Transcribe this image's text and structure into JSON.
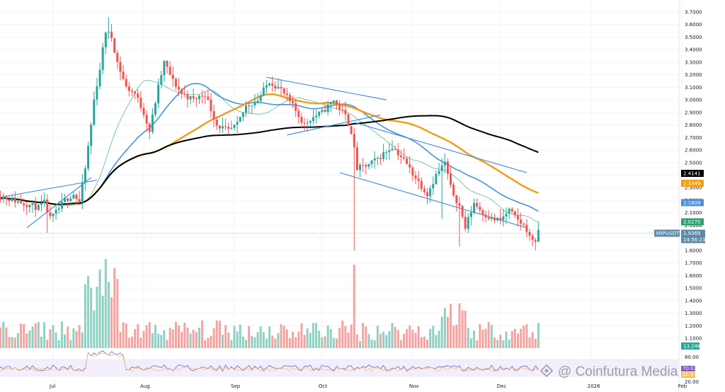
{
  "chart_data": {
    "type": "candlestick",
    "symbol": "XRPUSDT",
    "last_price": "1.9369",
    "countdown": "14:56:23",
    "price_axis": {
      "ticks": [
        "3.7000",
        "3.6000",
        "3.5000",
        "3.4000",
        "3.3000",
        "3.2000",
        "3.1000",
        "3.0000",
        "2.9000",
        "2.8000",
        "2.7000",
        "2.6000",
        "2.5000",
        "2.4000",
        "2.3000",
        "2.2000",
        "2.1000",
        "2.0000",
        "1.9000",
        "1.8000",
        "1.7000",
        "1.6000",
        "1.5000",
        "1.4000",
        "1.3000",
        "1.2000",
        "1.1000"
      ],
      "range": [
        1.1,
        3.7
      ]
    },
    "x_axis": {
      "labels": [
        "Jul",
        "Aug",
        "Sep",
        "Oct",
        "Nov",
        "Dec",
        "2026",
        "Feb"
      ]
    },
    "indicator_tags": [
      {
        "value": "2.4141",
        "color": "#000000"
      },
      {
        "value": "2.3349",
        "color": "#f39c12"
      },
      {
        "value": "2.1809",
        "color": "#4a90d9"
      },
      {
        "value": "2.0275",
        "color": "#27a36f"
      },
      {
        "value": "1.9369",
        "color": "#5d8aa8"
      },
      {
        "value": "14:56:23",
        "color": "#5d8aa8"
      }
    ],
    "volume_tag": "13.24K",
    "osc_tags": [
      "80.00",
      "20.00"
    ],
    "osc_partial_labels": [
      "70.03",
      "60.61"
    ],
    "moving_averages": [
      {
        "value": 2.4141,
        "color": "#000000"
      },
      {
        "value": 2.3349,
        "color": "#f39c12"
      },
      {
        "value": 2.1809,
        "color": "#4a90d9"
      },
      {
        "value": 2.0275,
        "color": "#27a36f"
      }
    ],
    "colors": {
      "up": "#26a69a",
      "down": "#ef5350",
      "up_vol": "#8fd0c4",
      "down_vol": "#f4a3a1",
      "trendline": "#4a90d9",
      "grid": "#f0f3fa"
    }
  },
  "watermark": "@ Coinfutura Media"
}
